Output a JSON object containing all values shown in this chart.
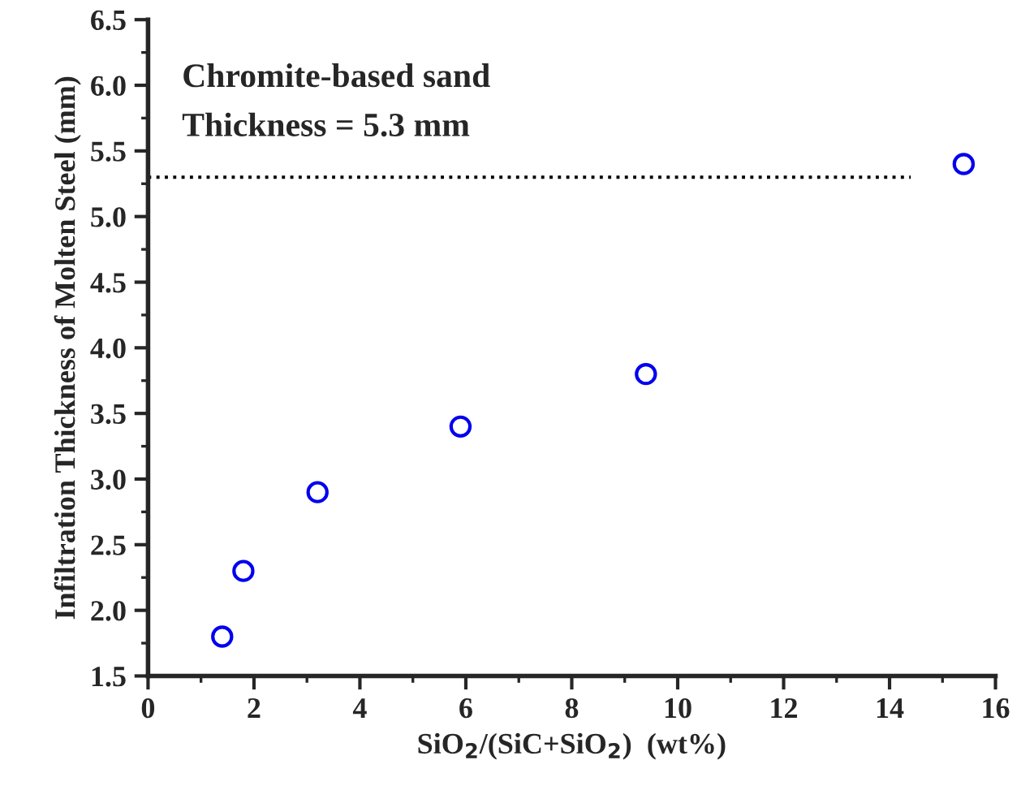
{
  "chart_data": {
    "type": "scatter",
    "xlabel": "SiO$_{2}$/(SiC+SiO$_{2}$)  (wt%)",
    "ylabel": "Infiltration Thickness of Molten Steel (mm)",
    "annotations": [
      "Chromite-based sand",
      "Thickness = 5.3 mm"
    ],
    "marker": "circle",
    "grid": false,
    "legend": false,
    "xlim": [
      0,
      16
    ],
    "xticks": [
      0,
      2,
      4,
      6,
      8,
      10,
      12,
      14,
      16
    ],
    "ylim": [
      1.5,
      6.5
    ],
    "yticks": [
      {
        "value": 1.5,
        "label": "1.5"
      },
      {
        "value": 2,
        "label": "2.0"
      },
      {
        "value": 2.5,
        "label": "2.5"
      },
      {
        "value": 3,
        "label": "3.0"
      },
      {
        "value": 3.5,
        "label": "3.5"
      },
      {
        "value": 4,
        "label": "4.0"
      },
      {
        "value": 4.5,
        "label": "4.5"
      },
      {
        "value": 5,
        "label": "5.0"
      },
      {
        "value": 5.5,
        "label": "5.5"
      },
      {
        "value": 6,
        "label": "6.0"
      },
      {
        "value": 6.5,
        "label": "6.5"
      }
    ],
    "series": [
      {
        "color": "#0000ee",
        "x": [
          1.4,
          1.8,
          3.2,
          5.9,
          9.4,
          15.4
        ],
        "values": [
          1.8,
          2.3,
          2.9,
          3.4,
          3.8,
          5.4
        ]
      },
      {
        "type": "line",
        "color": "#000000",
        "line_style": "dotted",
        "marker": "none",
        "x": [
          0,
          14.4
        ],
        "values": [
          5.3,
          5.3
        ]
      }
    ]
  }
}
